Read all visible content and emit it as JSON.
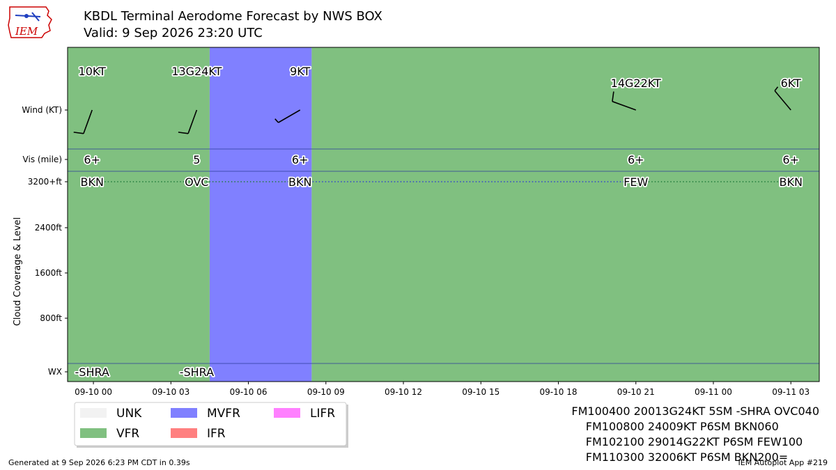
{
  "title": "KBDL Terminal Aerodome Forecast by NWS BOX",
  "subtitle": "Valid: 9 Sep 2026 23:20 UTC",
  "logo_text": "IEM",
  "footer_left": "Generated at 9 Sep 2026 6:23 PM CDT in 0.39s",
  "footer_right": "IEM Autoplot App #219",
  "taf_lines": [
    "FM100400 20013G24KT 5SM -SHRA OVC040",
    "    FM100800 24009KT P6SM BKN060",
    "    FM102100 29014G22KT P6SM FEW100",
    "    FM110300 32006KT P6SM BKN200="
  ],
  "colors": {
    "UNK": "#f2f2f2",
    "VFR": "#80c080",
    "MVFR": "#8080ff",
    "IFR": "#ff8080",
    "LIFR": "#ff80ff"
  },
  "chart_data": {
    "type": "timeline",
    "x_ticks": [
      "09-10 00",
      "09-10 03",
      "09-10 06",
      "09-10 09",
      "09-10 12",
      "09-10 15",
      "09-10 18",
      "09-10 21",
      "09-11 00",
      "09-11 03"
    ],
    "x_range_hours": [
      -1.0,
      28.1
    ],
    "y_rows": [
      "Wind (KT)",
      "Vis (mile)",
      "3200+ft",
      "2400ft",
      "1600ft",
      "800ft",
      "WX"
    ],
    "ylabel": "Cloud Coverage & Level",
    "legend": [
      {
        "label": "UNK",
        "key": "UNK"
      },
      {
        "label": "MVFR",
        "key": "MVFR"
      },
      {
        "label": "LIFR",
        "key": "LIFR"
      },
      {
        "label": "VFR",
        "key": "VFR"
      },
      {
        "label": "IFR",
        "key": "IFR"
      }
    ],
    "category_periods": [
      {
        "start": -1.0,
        "end": 4.5,
        "cat": "VFR"
      },
      {
        "start": 4.5,
        "end": 8.45,
        "cat": "MVFR"
      },
      {
        "start": 8.45,
        "end": 28.1,
        "cat": "VFR"
      }
    ],
    "forecasts": [
      {
        "hour": -0.05,
        "wind": "10KT",
        "dir": 200,
        "speed": 10,
        "vis": "6+",
        "sky": "BKN",
        "wx": "-SHRA"
      },
      {
        "hour": 4.0,
        "wind": "13G24KT",
        "dir": 200,
        "speed": 13,
        "vis": "5",
        "sky": "OVC",
        "wx": "-SHRA"
      },
      {
        "hour": 8.0,
        "wind": "9KT",
        "dir": 240,
        "speed": 9,
        "vis": "6+",
        "sky": "BKN",
        "wx": ""
      },
      {
        "hour": 21.0,
        "wind": "14G22KT",
        "dir": 290,
        "speed": 14,
        "vis": "6+",
        "sky": "FEW",
        "wx": ""
      },
      {
        "hour": 27.0,
        "wind": "6KT",
        "dir": 320,
        "speed": 6,
        "vis": "6+",
        "sky": "BKN",
        "wx": ""
      }
    ]
  }
}
